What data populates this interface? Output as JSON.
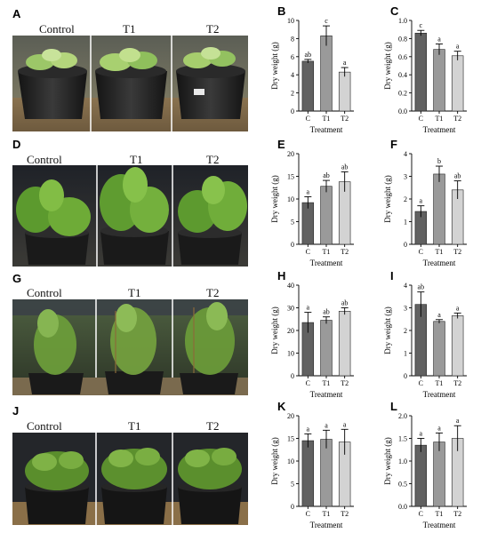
{
  "photo_rows": [
    {
      "letter": "A",
      "labels": [
        "Control",
        "T1",
        "T2"
      ]
    },
    {
      "letter": "D",
      "labels": [
        "Control",
        "T1",
        "T2"
      ]
    },
    {
      "letter": "G",
      "labels": [
        "Control",
        "T1",
        "T2"
      ]
    },
    {
      "letter": "J",
      "labels": [
        "Control",
        "T1",
        "T2"
      ]
    }
  ],
  "colors": {
    "C": "#616161",
    "T1": "#9a9a9a",
    "T2": "#d3d3d3"
  },
  "chart_data": [
    {
      "letter": "B",
      "type": "bar",
      "title": "",
      "xlabel": "Treatment",
      "ylabel": "Dry weight (g)",
      "categories": [
        "C",
        "T1",
        "T2"
      ],
      "values": [
        5.5,
        8.3,
        4.3
      ],
      "errors": [
        0.2,
        1.1,
        0.5
      ],
      "sig": [
        "ab",
        "c",
        "a"
      ],
      "ylim": [
        0,
        10
      ],
      "yticks": [
        0,
        2,
        4,
        6,
        8,
        10
      ],
      "ytick_labels": [
        "0",
        "2",
        "4",
        "6",
        "8",
        "10"
      ]
    },
    {
      "letter": "C",
      "type": "bar",
      "title": "",
      "xlabel": "Treatment",
      "ylabel": "Dry weight (g)",
      "categories": [
        "C",
        "T1",
        "T2"
      ],
      "values": [
        0.86,
        0.68,
        0.61
      ],
      "errors": [
        0.03,
        0.06,
        0.05
      ],
      "sig": [
        "c",
        "a",
        "a"
      ],
      "ylim": [
        0,
        1.0
      ],
      "yticks": [
        0,
        0.2,
        0.4,
        0.6,
        0.8,
        1.0
      ],
      "ytick_labels": [
        "0.0",
        "0.2",
        "0.4",
        "0.6",
        "0.8",
        "1.0"
      ]
    },
    {
      "letter": "E",
      "type": "bar",
      "title": "",
      "xlabel": "Treatment",
      "ylabel": "Dry weight (g)",
      "categories": [
        "C",
        "T1",
        "T2"
      ],
      "values": [
        9.2,
        12.8,
        13.8
      ],
      "errors": [
        1.3,
        1.3,
        2.2
      ],
      "sig": [
        "a",
        "ab",
        "ab"
      ],
      "ylim": [
        0,
        20
      ],
      "yticks": [
        0,
        5,
        10,
        15,
        20
      ],
      "ytick_labels": [
        "0",
        "5",
        "10",
        "15",
        "20"
      ]
    },
    {
      "letter": "F",
      "type": "bar",
      "title": "",
      "xlabel": "Treatment",
      "ylabel": "Dry weight (g)",
      "categories": [
        "C",
        "T1",
        "T2"
      ],
      "values": [
        1.45,
        3.1,
        2.4
      ],
      "errors": [
        0.25,
        0.35,
        0.4
      ],
      "sig": [
        "a",
        "b",
        "ab"
      ],
      "ylim": [
        0,
        4
      ],
      "yticks": [
        0,
        1,
        2,
        3,
        4
      ],
      "ytick_labels": [
        "0",
        "1",
        "2",
        "3",
        "4"
      ]
    },
    {
      "letter": "H",
      "type": "bar",
      "title": "",
      "xlabel": "Treatment",
      "ylabel": "Dry weight (g)",
      "categories": [
        "C",
        "T1",
        "T2"
      ],
      "values": [
        23.5,
        24.5,
        28.5
      ],
      "errors": [
        4.5,
        1.5,
        1.5
      ],
      "sig": [
        "a",
        "ab",
        "ab"
      ],
      "ylim": [
        0,
        40
      ],
      "yticks": [
        0,
        10,
        20,
        30,
        40
      ],
      "ytick_labels": [
        "0",
        "10",
        "20",
        "30",
        "40"
      ]
    },
    {
      "letter": "I",
      "type": "bar",
      "title": "",
      "xlabel": "Treatment",
      "ylabel": "Dry weight (g)",
      "categories": [
        "C",
        "T1",
        "T2"
      ],
      "values": [
        3.15,
        2.4,
        2.65
      ],
      "errors": [
        0.55,
        0.08,
        0.12
      ],
      "sig": [
        "ab",
        "a",
        "a"
      ],
      "ylim": [
        0,
        4
      ],
      "yticks": [
        0,
        1,
        2,
        3,
        4
      ],
      "ytick_labels": [
        "0",
        "1",
        "2",
        "3",
        "4"
      ]
    },
    {
      "letter": "K",
      "type": "bar",
      "title": "",
      "xlabel": "Treatment",
      "ylabel": "Dry weight (g)",
      "categories": [
        "C",
        "T1",
        "T2"
      ],
      "values": [
        14.5,
        14.8,
        14.2
      ],
      "errors": [
        1.5,
        2.0,
        2.8
      ],
      "sig": [
        "a",
        "a",
        "a"
      ],
      "ylim": [
        0,
        20
      ],
      "yticks": [
        0,
        5,
        10,
        15,
        20
      ],
      "ytick_labels": [
        "0",
        "5",
        "10",
        "15",
        "20"
      ]
    },
    {
      "letter": "L",
      "type": "bar",
      "title": "",
      "xlabel": "Treatment",
      "ylabel": "Dry weight (g)",
      "categories": [
        "C",
        "T1",
        "T2"
      ],
      "values": [
        1.35,
        1.42,
        1.5
      ],
      "errors": [
        0.15,
        0.2,
        0.28
      ],
      "sig": [
        "a",
        "a",
        "a"
      ],
      "ylim": [
        0,
        2.0
      ],
      "yticks": [
        0,
        0.5,
        1.0,
        1.5,
        2.0
      ],
      "ytick_labels": [
        "0.0",
        "0.5",
        "1.0",
        "1.5",
        "2.0"
      ]
    }
  ]
}
